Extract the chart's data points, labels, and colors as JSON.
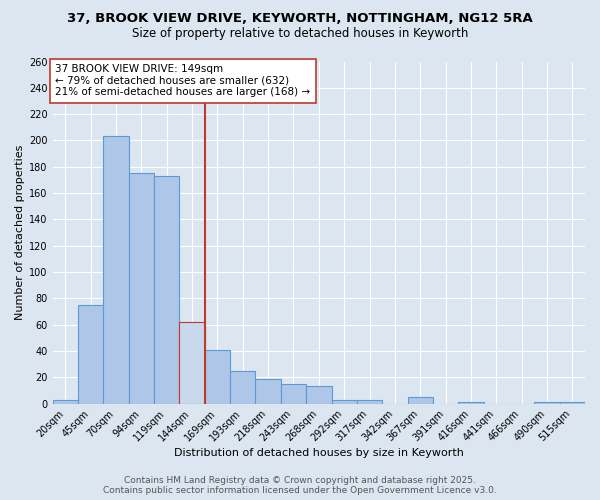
{
  "title_line1": "37, BROOK VIEW DRIVE, KEYWORTH, NOTTINGHAM, NG12 5RA",
  "title_line2": "Size of property relative to detached houses in Keyworth",
  "xlabel": "Distribution of detached houses by size in Keyworth",
  "ylabel": "Number of detached properties",
  "categories": [
    "20sqm",
    "45sqm",
    "70sqm",
    "94sqm",
    "119sqm",
    "144sqm",
    "169sqm",
    "193sqm",
    "218sqm",
    "243sqm",
    "268sqm",
    "292sqm",
    "317sqm",
    "342sqm",
    "367sqm",
    "391sqm",
    "416sqm",
    "441sqm",
    "466sqm",
    "490sqm",
    "515sqm"
  ],
  "values": [
    3,
    75,
    203,
    175,
    173,
    62,
    41,
    25,
    19,
    15,
    13,
    3,
    3,
    0,
    5,
    0,
    1,
    0,
    0,
    1,
    1
  ],
  "bar_color": "#aec6e8",
  "bar_edge_color": "#5b9bd5",
  "highlight_bar_index": 5,
  "highlight_bar_color": "#c8d9ee",
  "highlight_bar_edge_color": "#c0392b",
  "vline_color": "#c0392b",
  "annotation_text": "37 BROOK VIEW DRIVE: 149sqm\n← 79% of detached houses are smaller (632)\n21% of semi-detached houses are larger (168) →",
  "annotation_box_color": "white",
  "annotation_box_edge_color": "#c0392b",
  "ylim": [
    0,
    260
  ],
  "yticks": [
    0,
    20,
    40,
    60,
    80,
    100,
    120,
    140,
    160,
    180,
    200,
    220,
    240,
    260
  ],
  "background_color": "#dce6f0",
  "plot_background_color": "#dce6f0",
  "footer_line1": "Contains HM Land Registry data © Crown copyright and database right 2025.",
  "footer_line2": "Contains public sector information licensed under the Open Government Licence v3.0.",
  "title_fontsize": 9.5,
  "subtitle_fontsize": 8.5,
  "axis_label_fontsize": 8,
  "tick_fontsize": 7,
  "annotation_fontsize": 7.5,
  "footer_fontsize": 6.5
}
